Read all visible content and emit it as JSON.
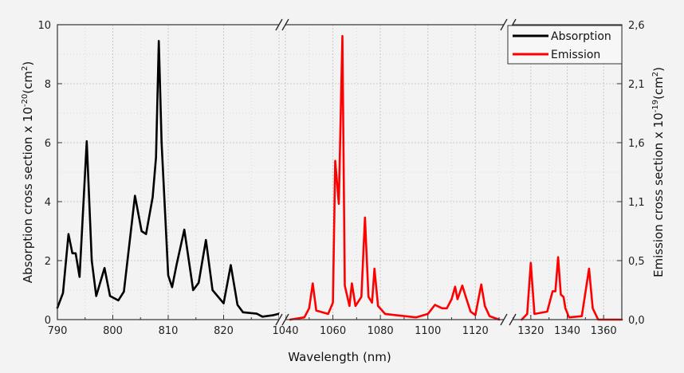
{
  "chart_data": {
    "type": "line",
    "xlabel": "Wavelength (nm)",
    "ylabel_left": "Absorption cross section x 10",
    "ylabel_left_exp": "-20",
    "ylabel_left_unit": "(cm",
    "ylabel_left_unit_exp": "2",
    "ylabel_left_close": ")",
    "ylabel_right": "Emission cross section x 10",
    "ylabel_right_exp": "-19",
    "ylabel_right_unit": "(cm",
    "ylabel_right_unit_exp": "2",
    "ylabel_right_close": ")",
    "grid": true,
    "legend_position": "top-right",
    "x_segments": [
      {
        "range": [
          790,
          830
        ],
        "ticks": [
          "790",
          "800",
          "810",
          "820"
        ]
      },
      {
        "range": [
          1040,
          1132
        ],
        "ticks": [
          "1040",
          "1060",
          "1080",
          "1100",
          "1120"
        ]
      },
      {
        "range": [
          1310,
          1370
        ],
        "ticks": [
          "1320",
          "1340",
          "1360"
        ]
      }
    ],
    "y_left": {
      "range": [
        0,
        10
      ],
      "ticks": [
        "0",
        "2",
        "4",
        "6",
        "8",
        "10"
      ]
    },
    "y_right": {
      "range": [
        0,
        2.6
      ],
      "ticks": [
        "0,0",
        "0,5",
        "1,1",
        "1,6",
        "2,1",
        "2,6"
      ]
    },
    "series": [
      {
        "name": "Absorption",
        "color": "#000000",
        "axis": "left",
        "points": [
          [
            790,
            0.4
          ],
          [
            791,
            0.9
          ],
          [
            792,
            2.9
          ],
          [
            792.7,
            2.25
          ],
          [
            793.3,
            2.25
          ],
          [
            794,
            1.45
          ],
          [
            795.3,
            6.05
          ],
          [
            796.2,
            2.0
          ],
          [
            797,
            0.8
          ],
          [
            798.5,
            1.75
          ],
          [
            799.5,
            0.8
          ],
          [
            801,
            0.65
          ],
          [
            802,
            0.95
          ],
          [
            804,
            4.2
          ],
          [
            805.2,
            3.0
          ],
          [
            806,
            2.9
          ],
          [
            807.2,
            4.15
          ],
          [
            807.8,
            5.5
          ],
          [
            808.3,
            9.45
          ],
          [
            808.8,
            6.0
          ],
          [
            810,
            1.5
          ],
          [
            810.7,
            1.1
          ],
          [
            811.5,
            1.85
          ],
          [
            812.9,
            3.05
          ],
          [
            814.5,
            1.0
          ],
          [
            815.5,
            1.25
          ],
          [
            816.8,
            2.7
          ],
          [
            818,
            1.0
          ],
          [
            820,
            0.55
          ],
          [
            821.3,
            1.85
          ],
          [
            822.5,
            0.5
          ],
          [
            823.5,
            0.25
          ],
          [
            826,
            0.2
          ],
          [
            827,
            0.1
          ],
          [
            829,
            0.15
          ],
          [
            830,
            0.2
          ]
        ]
      },
      {
        "name": "Emission",
        "color": "#ff0000",
        "axis": "right",
        "points": [
          [
            1042,
            0.0
          ],
          [
            1048,
            0.02
          ],
          [
            1050,
            0.1
          ],
          [
            1051.5,
            0.32
          ],
          [
            1053,
            0.08
          ],
          [
            1058,
            0.05
          ],
          [
            1060,
            0.15
          ],
          [
            1061,
            1.4
          ],
          [
            1062.5,
            1.02
          ],
          [
            1064,
            2.5
          ],
          [
            1065,
            0.3
          ],
          [
            1067,
            0.12
          ],
          [
            1068,
            0.32
          ],
          [
            1069.5,
            0.12
          ],
          [
            1072,
            0.2
          ],
          [
            1073.5,
            0.9
          ],
          [
            1075,
            0.2
          ],
          [
            1076.5,
            0.15
          ],
          [
            1077.5,
            0.45
          ],
          [
            1079,
            0.12
          ],
          [
            1082,
            0.05
          ],
          [
            1095,
            0.02
          ],
          [
            1100,
            0.05
          ],
          [
            1103,
            0.13
          ],
          [
            1106,
            0.1
          ],
          [
            1108,
            0.1
          ],
          [
            1110,
            0.18
          ],
          [
            1111.5,
            0.29
          ],
          [
            1112.5,
            0.18
          ],
          [
            1114.5,
            0.3
          ],
          [
            1116,
            0.2
          ],
          [
            1118,
            0.07
          ],
          [
            1120,
            0.04
          ],
          [
            1122.5,
            0.31
          ],
          [
            1124,
            0.12
          ],
          [
            1126,
            0.03
          ],
          [
            1130,
            0.0
          ],
          [
            1315,
            0.0
          ],
          [
            1318,
            0.05
          ],
          [
            1320,
            0.5
          ],
          [
            1322,
            0.05
          ],
          [
            1329,
            0.07
          ],
          [
            1332,
            0.25
          ],
          [
            1333.5,
            0.25
          ],
          [
            1335,
            0.55
          ],
          [
            1336.5,
            0.22
          ],
          [
            1338,
            0.2
          ],
          [
            1339,
            0.1
          ],
          [
            1341,
            0.02
          ],
          [
            1348,
            0.03
          ],
          [
            1352,
            0.45
          ],
          [
            1354,
            0.1
          ],
          [
            1357,
            0.0
          ],
          [
            1370,
            0.0
          ]
        ]
      }
    ]
  }
}
